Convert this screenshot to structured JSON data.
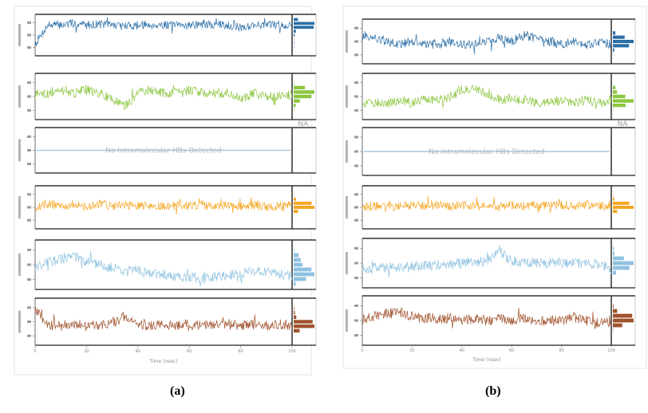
{
  "figure": {
    "captions": [
      "(a)",
      "(b)"
    ],
    "xlabel": "Time (nsec)",
    "xticks": [
      "0",
      "20",
      "40",
      "60",
      "80",
      "100"
    ],
    "na_label": "NA",
    "empty_panel_text": "No Intramolecular HBs Detected"
  },
  "chart_data": [
    {
      "type": "line",
      "panel": "a",
      "x_range": [
        0,
        100
      ],
      "xlabel": "Time (nsec)",
      "tracks": [
        {
          "color": "#2a6ea6",
          "ylim": [
            2.0,
            3.2
          ],
          "hist": true,
          "series": [
            {
              "x": [
                0,
                5,
                10,
                15,
                20,
                25,
                30,
                35,
                40,
                45,
                50,
                55,
                60,
                65,
                70,
                75,
                80,
                85,
                90,
                95,
                100
              ],
              "y": [
                2.3,
                2.95,
                2.95,
                3.0,
                2.95,
                2.98,
                2.95,
                2.9,
                2.95,
                2.95,
                2.95,
                2.92,
                2.95,
                2.95,
                2.95,
                2.95,
                2.85,
                2.95,
                2.95,
                2.95,
                2.95
              ]
            }
          ]
        },
        {
          "color": "#8cc63f",
          "ylim": [
            3.6,
            4.2
          ],
          "hist": true,
          "series": [
            {
              "x": [
                0,
                5,
                10,
                15,
                20,
                25,
                30,
                35,
                40,
                45,
                50,
                55,
                60,
                65,
                70,
                75,
                80,
                85,
                90,
                95,
                100
              ],
              "y": [
                3.9,
                3.95,
                4.0,
                3.95,
                4.0,
                3.95,
                3.85,
                3.75,
                3.95,
                4.0,
                3.95,
                3.95,
                4.0,
                3.95,
                3.95,
                3.95,
                3.85,
                3.95,
                3.9,
                3.9,
                3.95
              ]
            }
          ]
        },
        {
          "color": "#a6c8e6",
          "ylim": [
            0,
            1
          ],
          "hist": false,
          "na": true,
          "series": [
            {
              "x": [
                0,
                100
              ],
              "y": [
                0.5,
                0.5
              ]
            }
          ]
        },
        {
          "color": "#f5a623",
          "ylim": [
            100,
            130
          ],
          "hist": true,
          "series": [
            {
              "x": [
                0,
                5,
                10,
                15,
                20,
                25,
                30,
                35,
                40,
                45,
                50,
                55,
                60,
                65,
                70,
                75,
                80,
                85,
                90,
                95,
                100
              ],
              "y": [
                115,
                118,
                116,
                117,
                115,
                118,
                116,
                117,
                116,
                117,
                116,
                117,
                116,
                117,
                116,
                117,
                116,
                117,
                115,
                116,
                117
              ]
            }
          ]
        },
        {
          "color": "#8ec1e0",
          "ylim": [
            60,
            130
          ],
          "hist": true,
          "series": [
            {
              "x": [
                0,
                5,
                10,
                15,
                20,
                25,
                30,
                35,
                40,
                45,
                50,
                55,
                60,
                65,
                70,
                75,
                80,
                85,
                90,
                95,
                100
              ],
              "y": [
                90,
                100,
                105,
                110,
                100,
                95,
                90,
                85,
                85,
                80,
                80,
                75,
                75,
                72,
                75,
                78,
                80,
                85,
                85,
                80,
                78
              ]
            }
          ]
        },
        {
          "color": "#a0522d",
          "ylim": [
            0,
            100
          ],
          "hist": true,
          "series": [
            {
              "x": [
                0,
                5,
                10,
                15,
                20,
                25,
                30,
                35,
                40,
                45,
                50,
                55,
                60,
                65,
                70,
                75,
                80,
                85,
                90,
                95,
                100
              ],
              "y": [
                80,
                40,
                45,
                40,
                45,
                40,
                45,
                65,
                45,
                40,
                45,
                40,
                45,
                40,
                45,
                45,
                40,
                45,
                40,
                45,
                40
              ]
            }
          ]
        }
      ]
    },
    {
      "type": "line",
      "panel": "b",
      "x_range": [
        0,
        100
      ],
      "xlabel": "Time (nsec)",
      "tracks": [
        {
          "color": "#2a6ea6",
          "ylim": [
            2.0,
            3.2
          ],
          "hist": true,
          "series": [
            {
              "x": [
                0,
                5,
                10,
                15,
                20,
                25,
                30,
                35,
                40,
                45,
                50,
                55,
                60,
                65,
                70,
                75,
                80,
                85,
                90,
                95,
                100
              ],
              "y": [
                2.8,
                2.7,
                2.6,
                2.5,
                2.6,
                2.5,
                2.5,
                2.6,
                2.5,
                2.5,
                2.6,
                2.7,
                2.6,
                2.8,
                2.7,
                2.6,
                2.5,
                2.6,
                2.5,
                2.6,
                2.5
              ]
            }
          ]
        },
        {
          "color": "#8cc63f",
          "ylim": [
            3.6,
            4.2
          ],
          "hist": true,
          "series": [
            {
              "x": [
                0,
                5,
                10,
                15,
                20,
                25,
                30,
                35,
                40,
                45,
                50,
                55,
                60,
                65,
                70,
                75,
                80,
                85,
                90,
                95,
                100
              ],
              "y": [
                3.8,
                3.8,
                3.8,
                3.85,
                3.8,
                3.85,
                3.85,
                3.9,
                4.0,
                4.0,
                3.95,
                3.85,
                3.85,
                3.85,
                3.8,
                3.8,
                3.85,
                3.8,
                3.85,
                3.8,
                3.85
              ]
            }
          ]
        },
        {
          "color": "#a6c8e6",
          "ylim": [
            0,
            1
          ],
          "hist": false,
          "na": true,
          "series": [
            {
              "x": [
                0,
                100
              ],
              "y": [
                0.5,
                0.5
              ]
            }
          ]
        },
        {
          "color": "#f5a623",
          "ylim": [
            100,
            130
          ],
          "hist": true,
          "series": [
            {
              "x": [
                0,
                5,
                10,
                15,
                20,
                25,
                30,
                35,
                40,
                45,
                50,
                55,
                60,
                65,
                70,
                75,
                80,
                85,
                90,
                95,
                100
              ],
              "y": [
                115,
                116,
                117,
                116,
                117,
                116,
                117,
                116,
                117,
                116,
                117,
                116,
                117,
                116,
                117,
                116,
                117,
                116,
                117,
                116,
                116
              ]
            }
          ]
        },
        {
          "color": "#8ec1e0",
          "ylim": [
            60,
            130
          ],
          "hist": true,
          "series": [
            {
              "x": [
                0,
                5,
                10,
                15,
                20,
                25,
                30,
                35,
                40,
                45,
                50,
                55,
                60,
                65,
                70,
                75,
                80,
                85,
                90,
                95,
                100
              ],
              "y": [
                85,
                87,
                88,
                89,
                90,
                91,
                92,
                93,
                95,
                97,
                98,
                115,
                98,
                96,
                96,
                95,
                96,
                96,
                95,
                94,
                85
              ]
            }
          ]
        },
        {
          "color": "#a0522d",
          "ylim": [
            0,
            100
          ],
          "hist": true,
          "series": [
            {
              "x": [
                0,
                5,
                10,
                15,
                20,
                25,
                30,
                35,
                40,
                45,
                50,
                55,
                60,
                65,
                70,
                75,
                80,
                85,
                90,
                95,
                100
              ],
              "y": [
                50,
                60,
                65,
                70,
                60,
                55,
                55,
                55,
                50,
                55,
                50,
                55,
                50,
                55,
                50,
                50,
                50,
                55,
                50,
                45,
                50
              ]
            }
          ]
        }
      ]
    }
  ]
}
